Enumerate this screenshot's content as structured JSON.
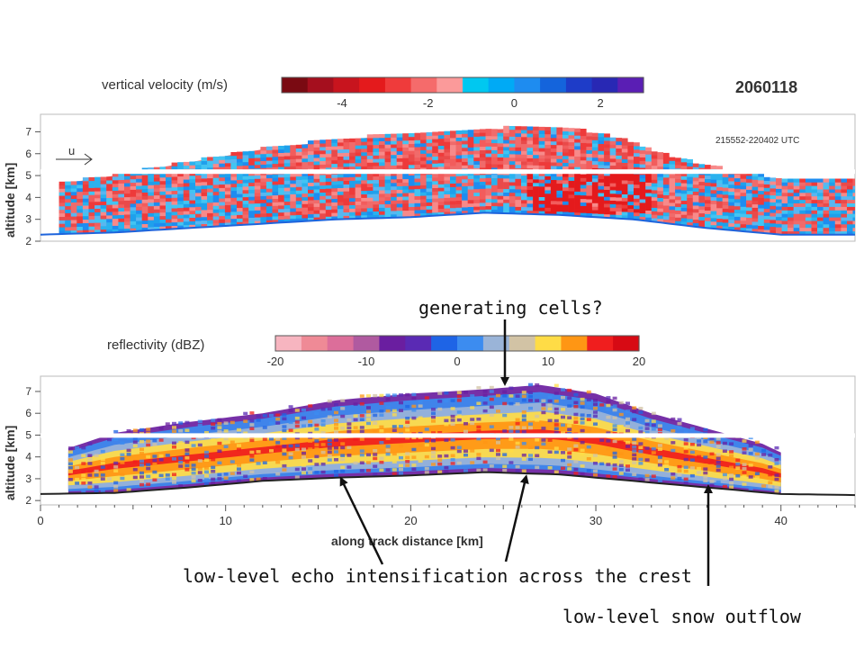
{
  "chart_data": [
    {
      "type": "heatmap",
      "title": "vertical velocity (m/s)",
      "date_label": "2060118",
      "time_label": "215552-220402  UTC",
      "wind_label": "u",
      "ylabel": "altitude [km]",
      "yticks": [
        "2",
        "3",
        "4",
        "5",
        "6",
        "7"
      ],
      "ylim": [
        2,
        7.8
      ],
      "xlim": [
        0,
        44
      ],
      "colorbar": {
        "tick_labels": [
          "-4",
          "-2",
          "0",
          "2"
        ],
        "tick_values": [
          -4,
          -2,
          0,
          2
        ],
        "range": [
          -5.4,
          3
        ],
        "colors": [
          "#7a0a12",
          "#a50f1e",
          "#c8141e",
          "#e41a1c",
          "#ef3b3b",
          "#f56b6b",
          "#fb9a9a",
          "#00c8f0",
          "#00aaf5",
          "#1e8cf0",
          "#1464dc",
          "#1e3cc8",
          "#2828b4",
          "#5a1eb4"
        ]
      },
      "cloud_base": [
        {
          "x": 0,
          "y": 2.3
        },
        {
          "x": 4,
          "y": 2.4
        },
        {
          "x": 8,
          "y": 2.6
        },
        {
          "x": 12,
          "y": 2.8
        },
        {
          "x": 16,
          "y": 3.0
        },
        {
          "x": 20,
          "y": 3.1
        },
        {
          "x": 24,
          "y": 3.3
        },
        {
          "x": 28,
          "y": 3.2
        },
        {
          "x": 32,
          "y": 3.0
        },
        {
          "x": 36,
          "y": 2.6
        },
        {
          "x": 40,
          "y": 2.3
        },
        {
          "x": 44,
          "y": 2.3
        }
      ],
      "cloud_top": [
        {
          "x": 1,
          "y": 4.6
        },
        {
          "x": 4,
          "y": 5.0
        },
        {
          "x": 8,
          "y": 5.6
        },
        {
          "x": 12,
          "y": 6.2
        },
        {
          "x": 16,
          "y": 6.6
        },
        {
          "x": 20,
          "y": 6.9
        },
        {
          "x": 24,
          "y": 7.1
        },
        {
          "x": 28,
          "y": 7.2
        },
        {
          "x": 31,
          "y": 6.7
        },
        {
          "x": 34,
          "y": 5.8
        },
        {
          "x": 37,
          "y": 5.2
        },
        {
          "x": 40,
          "y": 4.8
        },
        {
          "x": 44,
          "y": 4.7
        }
      ],
      "gap_altitude_km": 5.2
    },
    {
      "type": "heatmap",
      "title": "reflectivity (dBZ)",
      "ylabel": "altitude [km]",
      "xlabel": "along track distance [km]",
      "yticks": [
        "2",
        "3",
        "4",
        "5",
        "6",
        "7"
      ],
      "xticks": [
        "0",
        "10",
        "20",
        "30",
        "40"
      ],
      "xtick_values": [
        0,
        10,
        20,
        30,
        40
      ],
      "ylim": [
        1.8,
        7.7
      ],
      "xlim": [
        0,
        44
      ],
      "colorbar": {
        "tick_labels": [
          "-20",
          "-10",
          "0",
          "10",
          "20"
        ],
        "tick_values": [
          -20,
          -10,
          0,
          10,
          20
        ],
        "range": [
          -20,
          20
        ],
        "colors": [
          "#f7b5c0",
          "#ef8a96",
          "#dc6e9a",
          "#b05aa0",
          "#6a1ea0",
          "#5a2ab4",
          "#1e64e6",
          "#3c8cf0",
          "#9ab4d8",
          "#d2c3a5",
          "#ffdc46",
          "#ff9614",
          "#f01e1e",
          "#d70a14"
        ]
      },
      "ground": [
        {
          "x": 0,
          "y": 2.3
        },
        {
          "x": 4,
          "y": 2.35
        },
        {
          "x": 8,
          "y": 2.6
        },
        {
          "x": 12,
          "y": 2.9
        },
        {
          "x": 16,
          "y": 3.05
        },
        {
          "x": 20,
          "y": 3.15
        },
        {
          "x": 24,
          "y": 3.3
        },
        {
          "x": 28,
          "y": 3.2
        },
        {
          "x": 32,
          "y": 2.9
        },
        {
          "x": 36,
          "y": 2.6
        },
        {
          "x": 40,
          "y": 2.3
        },
        {
          "x": 44,
          "y": 2.25
        }
      ],
      "cloud_top": [
        {
          "x": 1.5,
          "y": 4.4
        },
        {
          "x": 4,
          "y": 5.1
        },
        {
          "x": 8,
          "y": 5.6
        },
        {
          "x": 12,
          "y": 6.0
        },
        {
          "x": 16,
          "y": 6.6
        },
        {
          "x": 20,
          "y": 6.9
        },
        {
          "x": 24,
          "y": 7.1
        },
        {
          "x": 27,
          "y": 7.3
        },
        {
          "x": 30,
          "y": 6.9
        },
        {
          "x": 33,
          "y": 6.0
        },
        {
          "x": 36,
          "y": 5.3
        },
        {
          "x": 39,
          "y": 4.6
        },
        {
          "x": 40,
          "y": 4.2
        }
      ],
      "gap_altitude_km": 5.0,
      "annotations": [
        {
          "text": "generating cells?",
          "target": {
            "x": 25.3,
            "y": 7.1
          }
        },
        {
          "text": "low-level echo intensification across the crest",
          "targets": [
            {
              "x": 16,
              "y": 3.15
            },
            {
              "x": 26.5,
              "y": 3.3
            }
          ]
        },
        {
          "text": "low-level snow outflow",
          "target": {
            "x": 36.5,
            "y": 2.6
          }
        }
      ]
    }
  ]
}
